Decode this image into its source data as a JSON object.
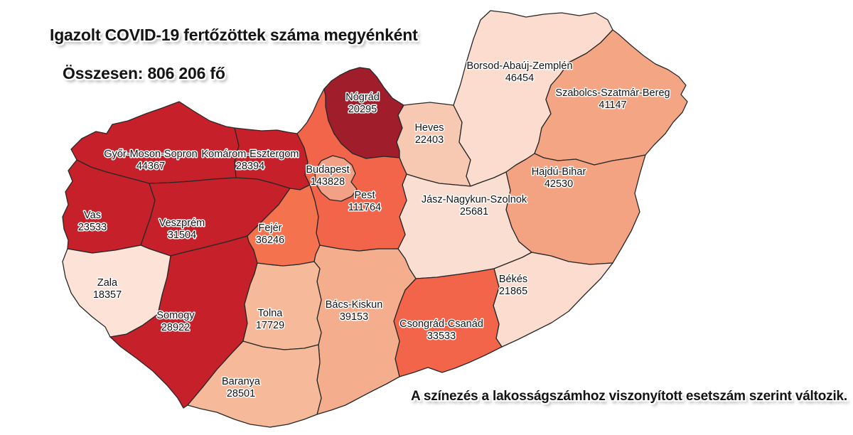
{
  "header": {
    "title": "Igazolt COVID-19 fertőzöttek száma megyénként",
    "total": "Összesen: 806 206 fő"
  },
  "footnote": "A színezés a lakosságszámhoz viszonyított esetszám szerint változik.",
  "map": {
    "background_color": "#FFFFFF",
    "border_color": "#282828",
    "label_text_color": "#141414",
    "label_halo_color": "#FFFFFF",
    "counties": [
      {
        "id": "gyor-moson-sopron",
        "name": "Győr-Moson-Sopron",
        "value": "44367",
        "color": "#C6202A"
      },
      {
        "id": "komarom-esztergom",
        "name": "Komárom-Esztergom",
        "value": "28394",
        "color": "#C6202A"
      },
      {
        "id": "vas",
        "name": "Vas",
        "value": "23533",
        "color": "#C6202A"
      },
      {
        "id": "veszprem",
        "name": "Veszprém",
        "value": "31504",
        "color": "#C6202A"
      },
      {
        "id": "somogy",
        "name": "Somogy",
        "value": "28922",
        "color": "#C6202A"
      },
      {
        "id": "zala",
        "name": "Zala",
        "value": "18357",
        "color": "#FCE2D7"
      },
      {
        "id": "nograd",
        "name": "Nógrád",
        "value": "20295",
        "color": "#A01D2C"
      },
      {
        "id": "heves",
        "name": "Heves",
        "value": "22403",
        "color": "#F8C9B2"
      },
      {
        "id": "borsod-abauj-zemplen",
        "name": "Borsod-Abaúj-Zemplén",
        "value": "46454",
        "color": "#FBDCCE"
      },
      {
        "id": "szabolcs-szatmar-bereg",
        "name": "Szabolcs-Szatmár-Bereg",
        "value": "41147",
        "color": "#F4A584"
      },
      {
        "id": "hajdu-bihar",
        "name": "Hajdú-Bihar",
        "value": "42530",
        "color": "#F3A381"
      },
      {
        "id": "jasz-nagykun-szolnok",
        "name": "Jász-Nagykun-Szolnok",
        "value": "25681",
        "color": "#FBDED2"
      },
      {
        "id": "bekes",
        "name": "Békés",
        "value": "21865",
        "color": "#FBDCCE"
      },
      {
        "id": "csongrad-csanad",
        "name": "Csongrád-Csanád",
        "value": "33533",
        "color": "#F2654B"
      },
      {
        "id": "bacs-kiskun",
        "name": "Bács-Kiskun",
        "value": "39153",
        "color": "#F4AE8E"
      },
      {
        "id": "tolna",
        "name": "Tolna",
        "value": "17729",
        "color": "#F6B99A"
      },
      {
        "id": "baranya",
        "name": "Baranya",
        "value": "28501",
        "color": "#F6B99A"
      },
      {
        "id": "fejer",
        "name": "Fejér",
        "value": "36246",
        "color": "#F4734E"
      },
      {
        "id": "pest",
        "name": "Pest",
        "value": "111764",
        "color": "#F2654B"
      },
      {
        "id": "budapest",
        "name": "Budapest",
        "value": "143828",
        "color": "#F2A186"
      }
    ]
  }
}
